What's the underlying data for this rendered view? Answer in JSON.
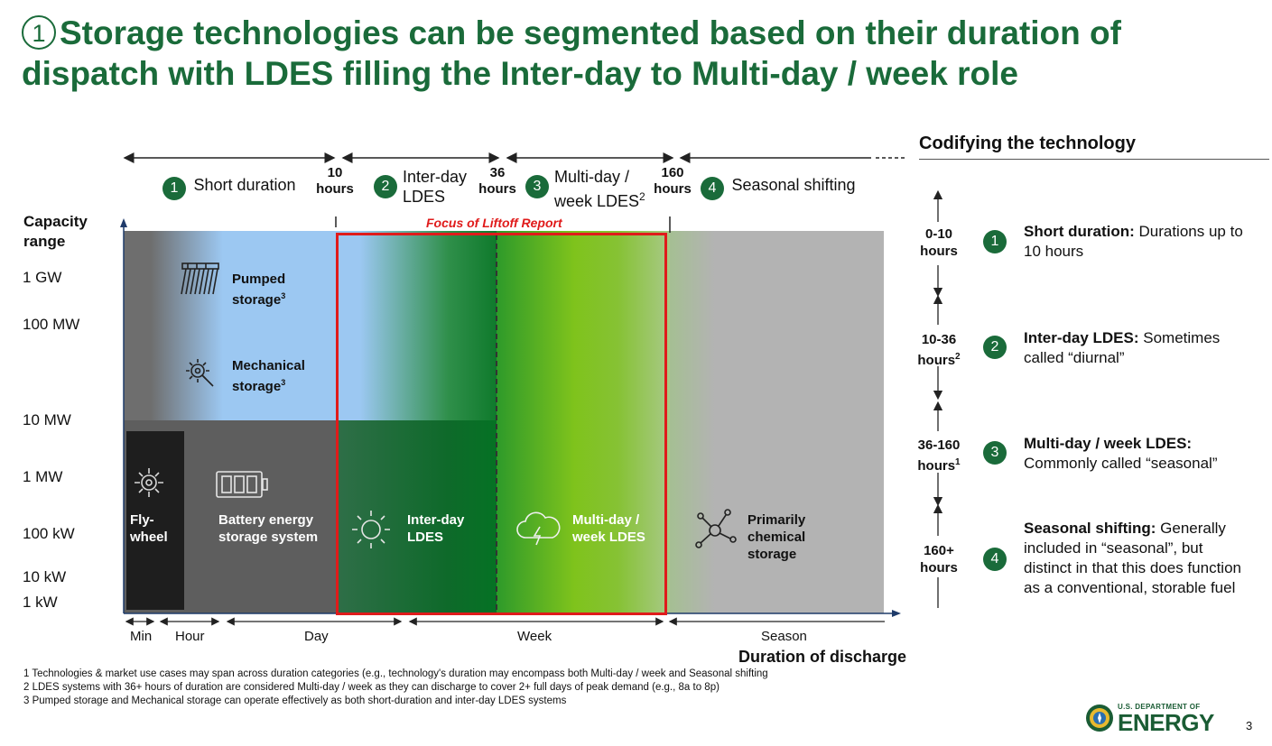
{
  "title": {
    "number": "1",
    "text": "Storage technologies can be segmented based on their duration of dispatch with LDES filling the Inter-day to Multi-day / week role"
  },
  "segments": [
    {
      "num": "1",
      "label": "Short duration"
    },
    {
      "num": "2",
      "label_line1": "Inter-day",
      "label_line2": "LDES"
    },
    {
      "num": "3",
      "label_line1": "Multi-day /",
      "label_line2": "week LDES",
      "sup": "2"
    },
    {
      "num": "4",
      "label": "Seasonal shifting"
    }
  ],
  "boundaries": [
    {
      "value": "10",
      "unit": "hours"
    },
    {
      "value": "36",
      "unit": "hours"
    },
    {
      "value": "160",
      "unit": "hours"
    }
  ],
  "y_axis": {
    "title_line1": "Capacity",
    "title_line2": "range",
    "labels": [
      "1 GW",
      "100 MW",
      "10 MW",
      "1 MW",
      "100 kW",
      "10 kW",
      "1 kW"
    ]
  },
  "focus_label": "Focus of Liftoff Report",
  "technologies": {
    "pumped": {
      "line1": "Pumped",
      "line2": "storage",
      "sup": "3",
      "icon": "pumped-storage-icon"
    },
    "mechanical": {
      "line1": "Mechanical",
      "line2": "storage",
      "sup": "3",
      "icon": "gear-wrench-icon"
    },
    "flywheel": {
      "line1": "Fly-",
      "line2": "wheel",
      "icon": "gear-icon"
    },
    "battery": {
      "line1": "Battery energy",
      "line2": "storage system",
      "icon": "battery-icon"
    },
    "interday": {
      "line1": "Inter-day",
      "line2": "LDES",
      "icon": "sun-icon"
    },
    "multiday": {
      "line1": "Multi-day /",
      "line2": "week LDES",
      "icon": "storm-cloud-icon"
    },
    "chemical": {
      "line1": "Primarily",
      "line2": "chemical",
      "line3": "storage",
      "icon": "molecule-icon"
    }
  },
  "x_axis": {
    "labels": [
      "Min",
      "Hour",
      "Day",
      "Week",
      "Season"
    ],
    "title": "Duration of discharge"
  },
  "footnotes": [
    "1  Technologies & market use cases may span across duration categories (e.g., technology's duration may encompass both Multi-day / week and Seasonal shifting",
    "2  LDES systems with 36+ hours of duration are considered Multi-day / week as they can discharge to cover 2+ full days of peak demand (e.g., 8a to 8p)",
    "3  Pumped storage and Mechanical storage can operate effectively as both short-duration and inter-day LDES systems"
  ],
  "right_panel": {
    "title": "Codifying the technology",
    "items": [
      {
        "range_line1": "0-10",
        "range_line2": "hours",
        "range_sup": "",
        "num": "1",
        "bold": "Short duration:",
        "text_a": " Durations up to",
        "text_b": "10 hours",
        "text_c": "",
        "text_d": ""
      },
      {
        "range_line1": "10-36",
        "range_line2": "hours",
        "range_sup": "2",
        "num": "2",
        "bold": "Inter-day LDES:",
        "text_a": " Sometimes",
        "text_b": "called “diurnal”",
        "text_c": "",
        "text_d": ""
      },
      {
        "range_line1": "36-160",
        "range_line2": "hours",
        "range_sup": "1",
        "num": "3",
        "bold": "Multi-day / week LDES:",
        "text_a": "",
        "text_b": "Commonly called “seasonal”",
        "text_c": "",
        "text_d": ""
      },
      {
        "range_line1": "160+",
        "range_line2": "hours",
        "range_sup": "",
        "num": "4",
        "bold": "Seasonal shifting:",
        "text_a": " Generally",
        "text_b": "included in “seasonal”, but",
        "text_c": "distinct in that this does function",
        "text_d": "as a conventional, storable fuel"
      }
    ]
  },
  "logo": {
    "line1": "U.S. DEPARTMENT OF",
    "line2": "ENERGY"
  },
  "page_number": "3",
  "colors": {
    "brand_green": "#1a6b3a",
    "focus_red": "#e01b1b",
    "sky_blue": "#9cc8f2",
    "lime": "#7fc31c",
    "gray": "#b3b3b3"
  }
}
